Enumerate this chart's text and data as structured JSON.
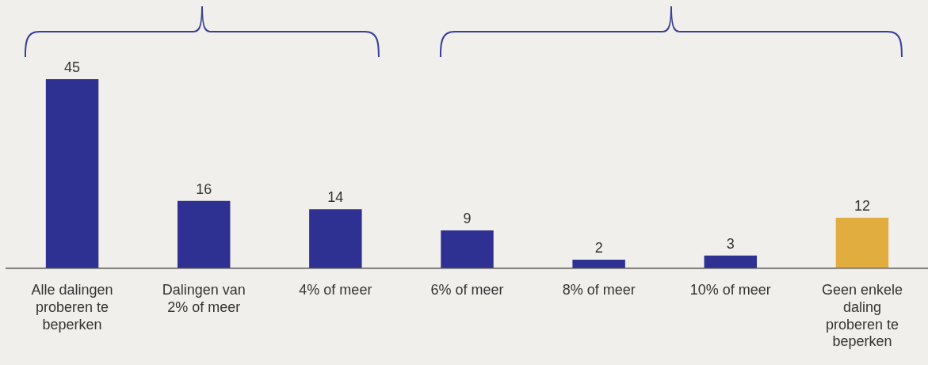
{
  "chart_data": {
    "type": "bar",
    "categories": [
      "Alle dalingen proberen te beperken",
      "Dalingen van 2% of meer",
      "4% of meer",
      "6% of meer",
      "8% of meer",
      "10% of meer",
      "Geen enkele daling proberen te beperken"
    ],
    "values": [
      45,
      16,
      14,
      9,
      2,
      3,
      12
    ],
    "colors": [
      "#2e3192",
      "#2e3192",
      "#2e3192",
      "#2e3192",
      "#2e3192",
      "#2e3192",
      "#e0ad3e"
    ],
    "data_labels": true,
    "grid": false,
    "legend": false,
    "tick_labels": "x"
  }
}
